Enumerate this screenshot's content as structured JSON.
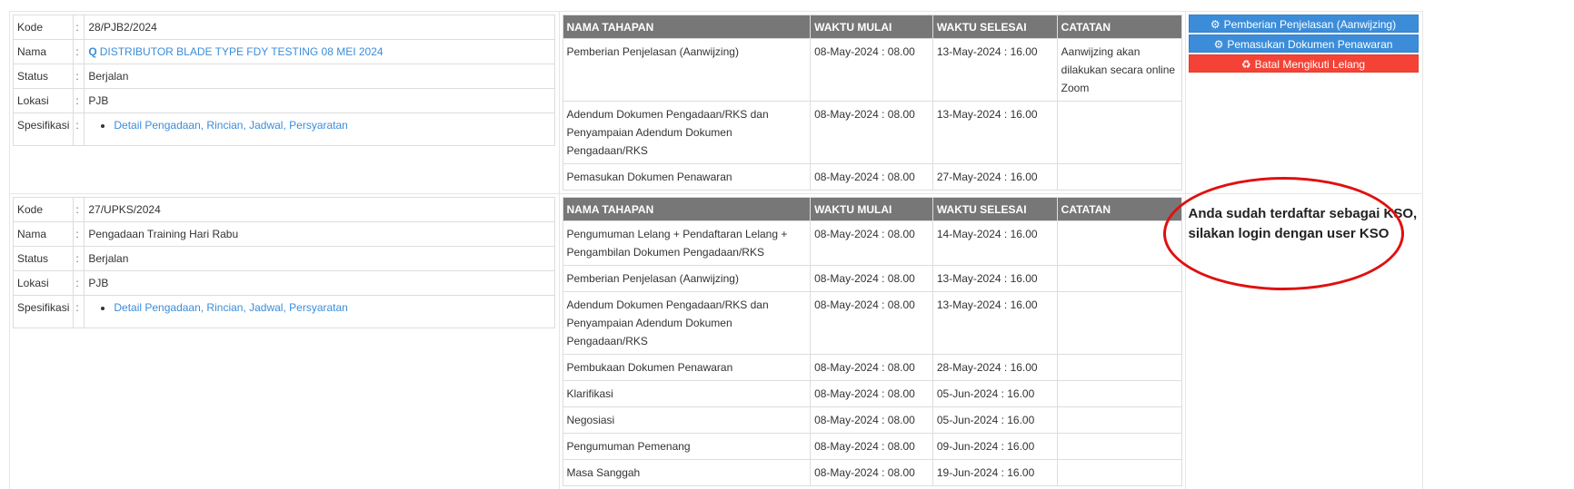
{
  "labels": {
    "kode": "Kode",
    "nama": "Nama",
    "status": "Status",
    "lokasi": "Lokasi",
    "spesifikasi": "Spesifikasi",
    "colon": ":"
  },
  "headers": {
    "nama_tahapan": "NAMA TAHAPAN",
    "waktu_mulai": "WAKTU MULAI",
    "waktu_selesai": "WAKTU SELESAI",
    "catatan": "CATATAN"
  },
  "tenders": [
    {
      "kode": "28/PJB2/2024",
      "nama": "DISTRIBUTOR BLADE TYPE FDY TESTING 08 MEI 2024",
      "status": "Berjalan",
      "lokasi": "PJB",
      "spesifikasi": "Detail Pengadaan, Rincian, Jadwal, Persyaratan",
      "stages": [
        {
          "nama": "Pemberian Penjelasan (Aanwijzing)",
          "mulai": "08-May-2024 : 08.00",
          "selesai": "13-May-2024 : 16.00",
          "catatan": "Aanwijzing akan dilakukan secara online Zoom"
        },
        {
          "nama": "Adendum Dokumen Pengadaan/RKS dan Penyampaian Adendum Dokumen Pengadaan/RKS",
          "mulai": "08-May-2024 : 08.00",
          "selesai": "13-May-2024 : 16.00",
          "catatan": ""
        },
        {
          "nama": "Pemasukan Dokumen Penawaran",
          "mulai": "08-May-2024 : 08.00",
          "selesai": "27-May-2024 : 16.00",
          "catatan": ""
        }
      ],
      "actions": [
        {
          "label": "Pemberian Penjelasan (Aanwijzing)",
          "icon": "cogs-icon",
          "color": "#3c8dd9"
        },
        {
          "label": "Pemasukan Dokumen Penawaran",
          "icon": "cogs-icon",
          "color": "#3c8dd9"
        },
        {
          "label": "Batal Mengikuti Lelang",
          "icon": "recycle-icon",
          "color": "#f44336"
        }
      ]
    },
    {
      "kode": "27/UPKS/2024",
      "nama": "Pengadaan Training Hari Rabu",
      "status": "Berjalan",
      "lokasi": "PJB",
      "spesifikasi": "Detail Pengadaan, Rincian, Jadwal, Persyaratan",
      "stages": [
        {
          "nama": "Pengumuman Lelang + Pendaftaran Lelang + Pengambilan Dokumen Pengadaan/RKS",
          "mulai": "08-May-2024 : 08.00",
          "selesai": "14-May-2024 : 16.00",
          "catatan": ""
        },
        {
          "nama": "Pemberian Penjelasan (Aanwijzing)",
          "mulai": "08-May-2024 : 08.00",
          "selesai": "13-May-2024 : 16.00",
          "catatan": ""
        },
        {
          "nama": "Adendum Dokumen Pengadaan/RKS dan Penyampaian Adendum Dokumen Pengadaan/RKS",
          "mulai": "08-May-2024 : 08.00",
          "selesai": "13-May-2024 : 16.00",
          "catatan": ""
        },
        {
          "nama": "Pembukaan Dokumen Penawaran",
          "mulai": "08-May-2024 : 08.00",
          "selesai": "28-May-2024 : 16.00",
          "catatan": ""
        },
        {
          "nama": "Klarifikasi",
          "mulai": "08-May-2024 : 08.00",
          "selesai": "05-Jun-2024 : 16.00",
          "catatan": ""
        },
        {
          "nama": "Negosiasi",
          "mulai": "08-May-2024 : 08.00",
          "selesai": "05-Jun-2024 : 16.00",
          "catatan": ""
        },
        {
          "nama": "Pengumuman Pemenang",
          "mulai": "08-May-2024 : 08.00",
          "selesai": "09-Jun-2024 : 16.00",
          "catatan": ""
        },
        {
          "nama": "Masa Sanggah",
          "mulai": "08-May-2024 : 08.00",
          "selesai": "19-Jun-2024 : 16.00",
          "catatan": ""
        }
      ],
      "message": "Anda sudah terdaftar sebagai KSO, silakan login dengan user KSO"
    }
  ]
}
